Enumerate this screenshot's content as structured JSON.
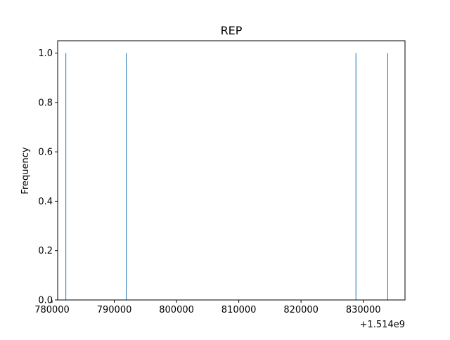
{
  "chart_data": {
    "type": "bar",
    "title": "REP",
    "xlabel": "",
    "ylabel": "Frequency",
    "x_offset_label": "+1.514e9",
    "xlim": [
      1514780900,
      1514836700
    ],
    "ylim": [
      0,
      1.05
    ],
    "x_ticks": [
      {
        "value": 1514780000,
        "label": "780000"
      },
      {
        "value": 1514790000,
        "label": "790000"
      },
      {
        "value": 1514800000,
        "label": "800000"
      },
      {
        "value": 1514810000,
        "label": "810000"
      },
      {
        "value": 1514820000,
        "label": "820000"
      },
      {
        "value": 1514830000,
        "label": "830000"
      }
    ],
    "y_ticks": [
      {
        "value": 0.0,
        "label": "0.0"
      },
      {
        "value": 0.2,
        "label": "0.2"
      },
      {
        "value": 0.4,
        "label": "0.4"
      },
      {
        "value": 0.6,
        "label": "0.6"
      },
      {
        "value": 0.8,
        "label": "0.8"
      },
      {
        "value": 1.0,
        "label": "1.0"
      }
    ],
    "bars": [
      {
        "x": 1514782200,
        "value": 1
      },
      {
        "x": 1514791900,
        "value": 1
      },
      {
        "x": 1514828800,
        "value": 1
      },
      {
        "x": 1514833900,
        "value": 1
      }
    ],
    "bar_width": 80,
    "bar_color": "#1f77b4",
    "grid": false
  }
}
